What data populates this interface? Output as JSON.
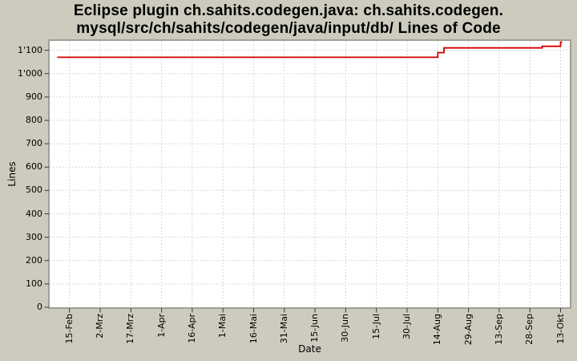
{
  "title": {
    "line1": "Eclipse plugin ch.sahits.codegen.java: ch.sahits.codegen.",
    "line2": "mysql/src/ch/sahits/codegen/java/input/db/ Lines of Code"
  },
  "colors": {
    "background": "#cccbbd",
    "plot_background": "#ffffff",
    "grid": "#d7d7d7",
    "plot_border": "#a09f95",
    "tick_mark": "#3a3a3a",
    "series": "#d40000",
    "text": "#000000"
  },
  "chart_data": {
    "type": "line",
    "title": "Eclipse plugin ch.sahits.codegen.java: ch.sahits.codegen.mysql/src/ch/sahits/codegen/java/input/db/ Lines of Code",
    "xlabel": "Date",
    "ylabel": "Lines",
    "legend": "none",
    "grid": "dashed",
    "ylim": [
      0,
      1140
    ],
    "y_ticks": [
      {
        "label": "0",
        "value": 0
      },
      {
        "label": "100",
        "value": 100
      },
      {
        "label": "200",
        "value": 200
      },
      {
        "label": "300",
        "value": 300
      },
      {
        "label": "400",
        "value": 400
      },
      {
        "label": "500",
        "value": 500
      },
      {
        "label": "600",
        "value": 600
      },
      {
        "label": "700",
        "value": 700
      },
      {
        "label": "800",
        "value": 800
      },
      {
        "label": "900",
        "value": 900
      },
      {
        "label": "1'000",
        "value": 1000
      },
      {
        "label": "1'100",
        "value": 1100
      }
    ],
    "x_tick_labels": [
      "15-Feb",
      "2-Mrz",
      "17-Mrz",
      "1-Apr",
      "16-Apr",
      "1-Mai",
      "16-Mai",
      "31-Mai",
      "15-Jun",
      "30-Jun",
      "15-Jul",
      "30-Jul",
      "14-Aug",
      "29-Aug",
      "13-Sep",
      "28-Sep",
      "13-Okt"
    ],
    "x_tick_interval_days": 15,
    "series": [
      {
        "color": "#d40000",
        "points": [
          {
            "date": "9-Feb",
            "day": -6,
            "value": 1070
          },
          {
            "date": "14-Aug",
            "day": 180,
            "value": 1070
          },
          {
            "date": "14-Aug",
            "day": 180,
            "value": 1090
          },
          {
            "date": "17-Aug",
            "day": 183,
            "value": 1090
          },
          {
            "date": "17-Aug",
            "day": 183,
            "value": 1110
          },
          {
            "date": "4-Okt",
            "day": 231,
            "value": 1110
          },
          {
            "date": "4-Okt",
            "day": 231,
            "value": 1117
          },
          {
            "date": "13-Okt",
            "day": 240,
            "value": 1117
          },
          {
            "date": "13-Okt",
            "day": 240,
            "value": 1135
          },
          {
            "date": "13-Okt",
            "day": 240.8,
            "value": 1135
          }
        ]
      }
    ]
  }
}
